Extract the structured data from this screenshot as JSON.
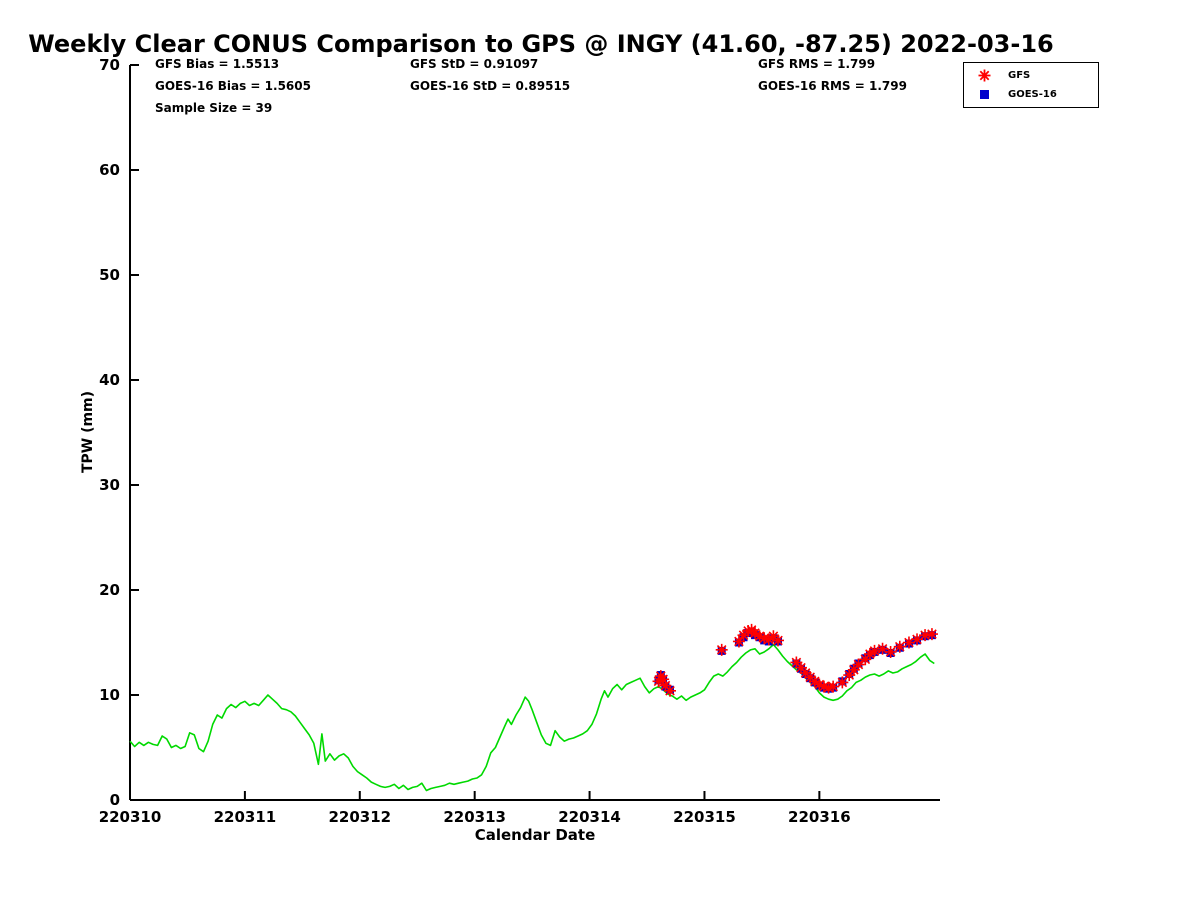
{
  "stats": {
    "gfs_bias": "GFS Bias = 1.5513",
    "goes_bias": "GOES-16 Bias = 1.5605",
    "sample_size": "Sample Size = 39",
    "gfs_std": "GFS StD = 0.91097",
    "goes_std": "GOES-16 StD = 0.89515",
    "gfs_rms": "GFS RMS = 1.799",
    "goes_rms": "GOES-16 RMS = 1.799"
  },
  "legend": {
    "items": [
      {
        "label": "GFS",
        "marker": "asterisk"
      },
      {
        "label": "GOES-16",
        "marker": "square"
      }
    ]
  },
  "chart_data": {
    "type": "line",
    "title": "Weekly Clear CONUS Comparison to GPS @ INGY (41.60, -87.25) 2022-03-16",
    "xlabel": "Calendar Date",
    "ylabel": "TPW (mm)",
    "x_base": 220310,
    "xlim_offset": [
      0,
      7.05
    ],
    "ylim": [
      0,
      70
    ],
    "grid": false,
    "legend_position": "top-right",
    "xticks": [
      0,
      1,
      2,
      3,
      4,
      5,
      6
    ],
    "xticklabels": [
      "220310",
      "220311",
      "220312",
      "220313",
      "220314",
      "220315",
      "220316"
    ],
    "yticks": [
      0,
      10,
      20,
      30,
      40,
      50,
      60,
      70
    ],
    "series": [
      {
        "name": "GPS",
        "type": "line",
        "marker": "none",
        "color": "#00d900",
        "points": [
          [
            0,
            5.6
          ],
          [
            0.04,
            5.1
          ],
          [
            0.08,
            5.5
          ],
          [
            0.12,
            5.2
          ],
          [
            0.16,
            5.5
          ],
          [
            0.2,
            5.3
          ],
          [
            0.24,
            5.2
          ],
          [
            0.28,
            6.1
          ],
          [
            0.32,
            5.8
          ],
          [
            0.36,
            5
          ],
          [
            0.4,
            5.2
          ],
          [
            0.44,
            4.9
          ],
          [
            0.48,
            5.1
          ],
          [
            0.52,
            6.4
          ],
          [
            0.56,
            6.2
          ],
          [
            0.6,
            4.9
          ],
          [
            0.64,
            4.6
          ],
          [
            0.68,
            5.6
          ],
          [
            0.72,
            7.2
          ],
          [
            0.76,
            8.1
          ],
          [
            0.8,
            7.8
          ],
          [
            0.84,
            8.7
          ],
          [
            0.88,
            9.1
          ],
          [
            0.92,
            8.8
          ],
          [
            0.96,
            9.2
          ],
          [
            1,
            9.4
          ],
          [
            1.04,
            9
          ],
          [
            1.08,
            9.2
          ],
          [
            1.12,
            9
          ],
          [
            1.16,
            9.5
          ],
          [
            1.2,
            10
          ],
          [
            1.24,
            9.6
          ],
          [
            1.28,
            9.2
          ],
          [
            1.32,
            8.7
          ],
          [
            1.36,
            8.6
          ],
          [
            1.4,
            8.4
          ],
          [
            1.44,
            8
          ],
          [
            1.48,
            7.4
          ],
          [
            1.52,
            6.8
          ],
          [
            1.56,
            6.2
          ],
          [
            1.6,
            5.4
          ],
          [
            1.64,
            3.4
          ],
          [
            1.67,
            6.3
          ],
          [
            1.7,
            3.7
          ],
          [
            1.74,
            4.4
          ],
          [
            1.78,
            3.8
          ],
          [
            1.82,
            4.2
          ],
          [
            1.86,
            4.4
          ],
          [
            1.9,
            4
          ],
          [
            1.94,
            3.2
          ],
          [
            1.98,
            2.7
          ],
          [
            2.02,
            2.4
          ],
          [
            2.06,
            2.1
          ],
          [
            2.1,
            1.7
          ],
          [
            2.14,
            1.5
          ],
          [
            2.18,
            1.3
          ],
          [
            2.22,
            1.2
          ],
          [
            2.26,
            1.3
          ],
          [
            2.3,
            1.5
          ],
          [
            2.34,
            1.1
          ],
          [
            2.38,
            1.4
          ],
          [
            2.42,
            1
          ],
          [
            2.46,
            1.2
          ],
          [
            2.5,
            1.3
          ],
          [
            2.54,
            1.6
          ],
          [
            2.58,
            0.9
          ],
          [
            2.62,
            1.1
          ],
          [
            2.66,
            1.2
          ],
          [
            2.7,
            1.3
          ],
          [
            2.74,
            1.4
          ],
          [
            2.78,
            1.6
          ],
          [
            2.82,
            1.5
          ],
          [
            2.86,
            1.6
          ],
          [
            2.9,
            1.7
          ],
          [
            2.94,
            1.8
          ],
          [
            2.98,
            2
          ],
          [
            3.02,
            2.1
          ],
          [
            3.06,
            2.4
          ],
          [
            3.1,
            3.2
          ],
          [
            3.14,
            4.5
          ],
          [
            3.18,
            5
          ],
          [
            3.22,
            6
          ],
          [
            3.26,
            7
          ],
          [
            3.29,
            7.7
          ],
          [
            3.32,
            7.2
          ],
          [
            3.36,
            8.1
          ],
          [
            3.4,
            8.8
          ],
          [
            3.44,
            9.8
          ],
          [
            3.47,
            9.4
          ],
          [
            3.5,
            8.6
          ],
          [
            3.54,
            7.4
          ],
          [
            3.58,
            6.2
          ],
          [
            3.62,
            5.4
          ],
          [
            3.66,
            5.2
          ],
          [
            3.7,
            6.6
          ],
          [
            3.74,
            6
          ],
          [
            3.78,
            5.6
          ],
          [
            3.82,
            5.8
          ],
          [
            3.86,
            5.9
          ],
          [
            3.9,
            6.1
          ],
          [
            3.94,
            6.3
          ],
          [
            3.98,
            6.6
          ],
          [
            4.02,
            7.2
          ],
          [
            4.06,
            8.2
          ],
          [
            4.1,
            9.6
          ],
          [
            4.13,
            10.4
          ],
          [
            4.16,
            9.8
          ],
          [
            4.2,
            10.6
          ],
          [
            4.24,
            11
          ],
          [
            4.28,
            10.5
          ],
          [
            4.32,
            11
          ],
          [
            4.36,
            11.2
          ],
          [
            4.4,
            11.4
          ],
          [
            4.44,
            11.6
          ],
          [
            4.48,
            10.8
          ],
          [
            4.52,
            10.2
          ],
          [
            4.56,
            10.6
          ],
          [
            4.6,
            10.8
          ],
          [
            4.64,
            10.5
          ],
          [
            4.68,
            10.1
          ],
          [
            4.72,
            9.9
          ],
          [
            4.76,
            9.6
          ],
          [
            4.8,
            9.9
          ],
          [
            4.84,
            9.5
          ],
          [
            4.88,
            9.8
          ],
          [
            4.92,
            10
          ],
          [
            4.96,
            10.2
          ],
          [
            5,
            10.5
          ],
          [
            5.04,
            11.2
          ],
          [
            5.08,
            11.8
          ],
          [
            5.12,
            12
          ],
          [
            5.16,
            11.8
          ],
          [
            5.2,
            12.2
          ],
          [
            5.24,
            12.7
          ],
          [
            5.28,
            13.1
          ],
          [
            5.32,
            13.6
          ],
          [
            5.36,
            14
          ],
          [
            5.4,
            14.3
          ],
          [
            5.44,
            14.4
          ],
          [
            5.48,
            13.9
          ],
          [
            5.52,
            14.1
          ],
          [
            5.56,
            14.4
          ],
          [
            5.6,
            14.8
          ],
          [
            5.64,
            14.3
          ],
          [
            5.68,
            13.7
          ],
          [
            5.72,
            13.2
          ],
          [
            5.76,
            12.8
          ],
          [
            5.8,
            12.4
          ],
          [
            5.84,
            12.1
          ],
          [
            5.88,
            11.6
          ],
          [
            5.92,
            11.2
          ],
          [
            5.96,
            10.8
          ],
          [
            6,
            10.2
          ],
          [
            6.04,
            9.8
          ],
          [
            6.08,
            9.6
          ],
          [
            6.12,
            9.5
          ],
          [
            6.16,
            9.6
          ],
          [
            6.2,
            9.9
          ],
          [
            6.24,
            10.4
          ],
          [
            6.28,
            10.7
          ],
          [
            6.32,
            11.2
          ],
          [
            6.36,
            11.4
          ],
          [
            6.4,
            11.7
          ],
          [
            6.44,
            11.9
          ],
          [
            6.48,
            12
          ],
          [
            6.52,
            11.8
          ],
          [
            6.56,
            12
          ],
          [
            6.6,
            12.3
          ],
          [
            6.64,
            12.1
          ],
          [
            6.68,
            12.2
          ],
          [
            6.72,
            12.5
          ],
          [
            6.76,
            12.7
          ],
          [
            6.8,
            12.9
          ],
          [
            6.84,
            13.2
          ],
          [
            6.88,
            13.6
          ],
          [
            6.92,
            13.9
          ],
          [
            6.96,
            13.3
          ],
          [
            7,
            13
          ]
        ]
      },
      {
        "name": "GFS",
        "type": "scatter",
        "marker": "asterisk",
        "color": "#ff0000",
        "points": [
          [
            4.6,
            11.3
          ],
          [
            4.62,
            11.8
          ],
          [
            4.64,
            11.5
          ],
          [
            4.66,
            10.9
          ],
          [
            4.7,
            10.4
          ],
          [
            5.15,
            14.3
          ],
          [
            5.3,
            15.1
          ],
          [
            5.34,
            15.7
          ],
          [
            5.38,
            16.1
          ],
          [
            5.41,
            16.2
          ],
          [
            5.44,
            15.9
          ],
          [
            5.48,
            15.6
          ],
          [
            5.52,
            15.4
          ],
          [
            5.56,
            15.3
          ],
          [
            5.6,
            15.6
          ],
          [
            5.64,
            15.2
          ],
          [
            5.8,
            13.1
          ],
          [
            5.84,
            12.6
          ],
          [
            5.88,
            12.1
          ],
          [
            5.92,
            11.7
          ],
          [
            5.96,
            11.3
          ],
          [
            6,
            11
          ],
          [
            6.04,
            10.8
          ],
          [
            6.08,
            10.7
          ],
          [
            6.12,
            10.8
          ],
          [
            6.2,
            11.2
          ],
          [
            6.26,
            11.9
          ],
          [
            6.3,
            12.4
          ],
          [
            6.34,
            12.9
          ],
          [
            6.4,
            13.4
          ],
          [
            6.44,
            13.9
          ],
          [
            6.48,
            14.2
          ],
          [
            6.55,
            14.4
          ],
          [
            6.62,
            14.1
          ],
          [
            6.7,
            14.6
          ],
          [
            6.78,
            15
          ],
          [
            6.85,
            15.3
          ],
          [
            6.92,
            15.7
          ],
          [
            6.98,
            15.8
          ]
        ]
      },
      {
        "name": "GOES-16",
        "type": "scatter",
        "marker": "square",
        "color": "#0000cc",
        "points": [
          [
            4.6,
            11.4
          ],
          [
            4.62,
            11.9
          ],
          [
            4.64,
            11.4
          ],
          [
            4.66,
            10.8
          ],
          [
            4.7,
            10.5
          ],
          [
            5.15,
            14.2
          ],
          [
            5.3,
            15
          ],
          [
            5.34,
            15.5
          ],
          [
            5.38,
            15.9
          ],
          [
            5.41,
            16
          ],
          [
            5.44,
            15.7
          ],
          [
            5.48,
            15.5
          ],
          [
            5.52,
            15.2
          ],
          [
            5.56,
            15.1
          ],
          [
            5.6,
            15.4
          ],
          [
            5.64,
            15.1
          ],
          [
            5.8,
            13
          ],
          [
            5.84,
            12.5
          ],
          [
            5.88,
            12
          ],
          [
            5.92,
            11.6
          ],
          [
            5.96,
            11.2
          ],
          [
            6,
            10.9
          ],
          [
            6.04,
            10.7
          ],
          [
            6.08,
            10.6
          ],
          [
            6.12,
            10.7
          ],
          [
            6.2,
            11.3
          ],
          [
            6.26,
            12
          ],
          [
            6.3,
            12.5
          ],
          [
            6.34,
            13
          ],
          [
            6.4,
            13.5
          ],
          [
            6.44,
            13.8
          ],
          [
            6.48,
            14.1
          ],
          [
            6.55,
            14.3
          ],
          [
            6.62,
            14
          ],
          [
            6.7,
            14.5
          ],
          [
            6.78,
            14.9
          ],
          [
            6.85,
            15.2
          ],
          [
            6.92,
            15.6
          ],
          [
            6.98,
            15.7
          ]
        ]
      }
    ]
  }
}
